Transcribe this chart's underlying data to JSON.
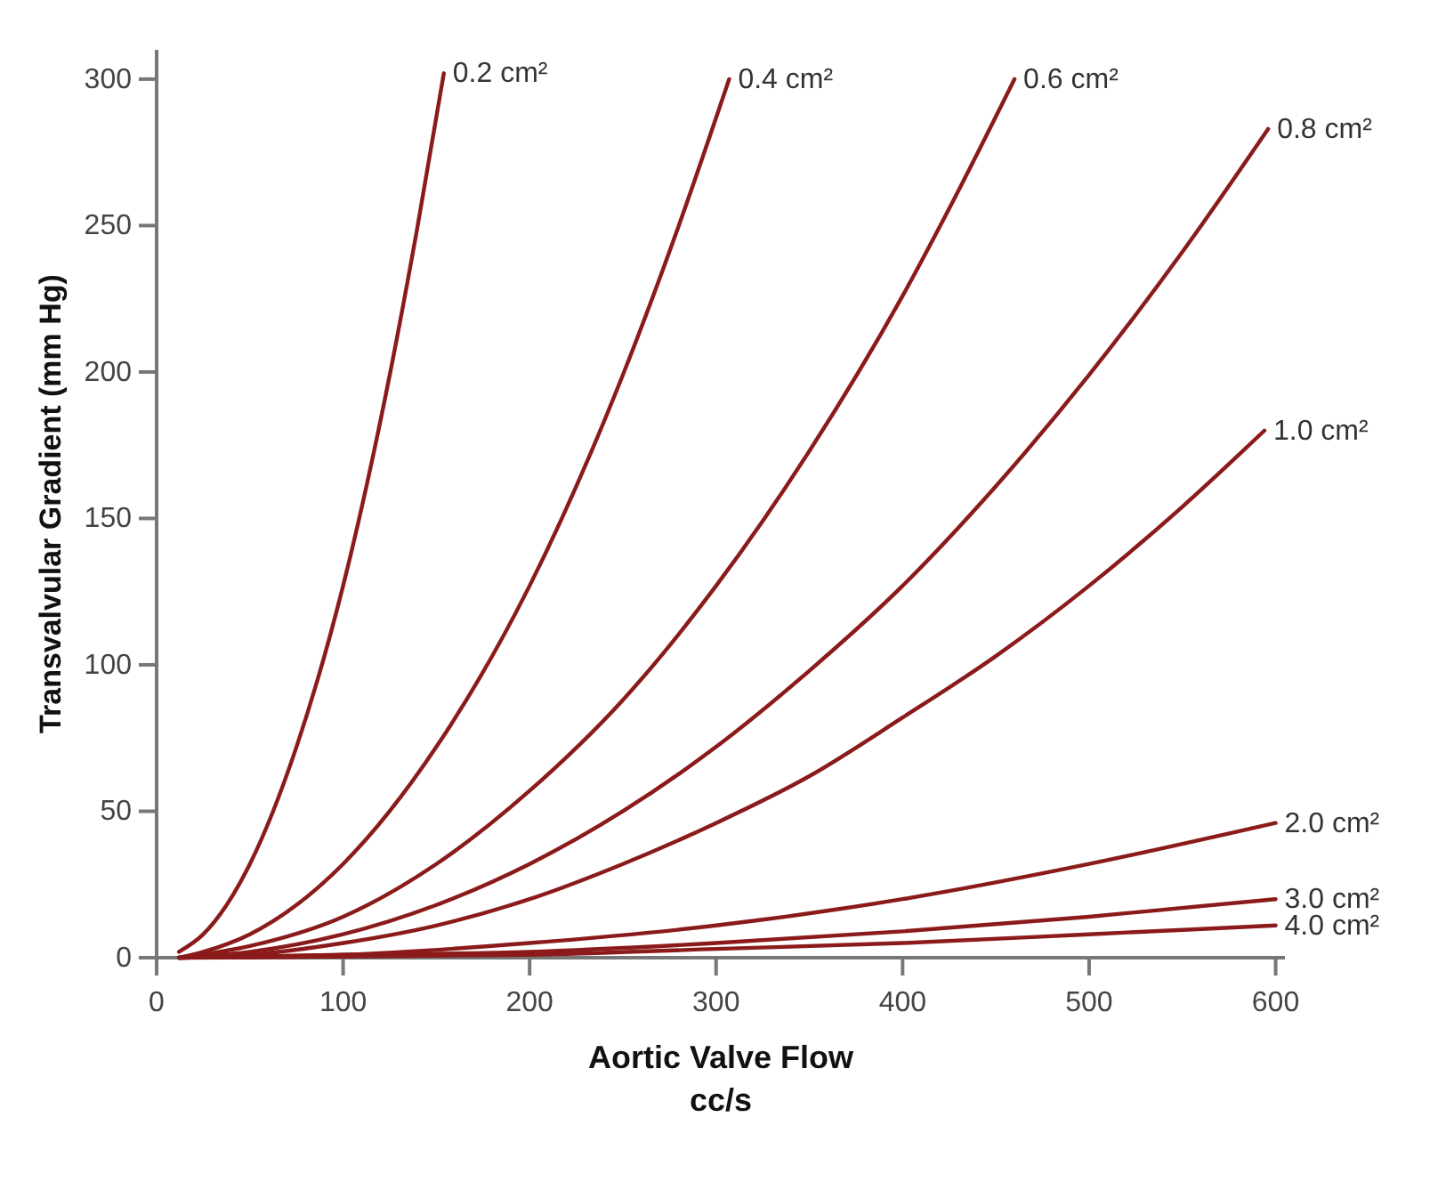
{
  "chart_data": {
    "type": "line",
    "xlabel": "Aortic Valve Flow\ncc/s",
    "ylabel": "Transvalvular Gradient (mm Hg)",
    "xlim": [
      0,
      605
    ],
    "ylim": [
      0,
      310
    ],
    "xticks": [
      0,
      100,
      200,
      300,
      400,
      500,
      600
    ],
    "yticks": [
      0,
      50,
      100,
      150,
      200,
      250,
      300
    ],
    "grid": false,
    "legend": false,
    "series": [
      {
        "name": "0.2 cm²",
        "color": "#8b1a1a",
        "x": [
          12,
          25,
          50,
          75,
          100,
          125,
          140,
          154
        ],
        "values": [
          2,
          8,
          32,
          72,
          127,
          199,
          250,
          302
        ]
      },
      {
        "name": "0.4 cm²",
        "color": "#8b1a1a",
        "x": [
          12,
          25,
          50,
          100,
          150,
          200,
          250,
          280,
          307
        ],
        "values": [
          0,
          2,
          8,
          32,
          72,
          127,
          199,
          250,
          300
        ]
      },
      {
        "name": "0.6 cm²",
        "color": "#8b1a1a",
        "x": [
          12,
          50,
          100,
          150,
          200,
          250,
          300,
          350,
          400,
          430,
          460
        ],
        "values": [
          0,
          4,
          14,
          32,
          57,
          88,
          127,
          173,
          226,
          262,
          300
        ]
      },
      {
        "name": "0.8 cm²",
        "color": "#8b1a1a",
        "x": [
          12,
          50,
          100,
          150,
          200,
          250,
          300,
          350,
          400,
          450,
          500,
          550,
          596
        ],
        "values": [
          0,
          2,
          8,
          18,
          32,
          50,
          72,
          98,
          127,
          161,
          199,
          241,
          283
        ]
      },
      {
        "name": "1.0 cm²",
        "color": "#8b1a1a",
        "x": [
          12,
          50,
          100,
          150,
          200,
          250,
          300,
          350,
          400,
          450,
          500,
          550,
          594
        ],
        "values": [
          0,
          1,
          5,
          11,
          20,
          32,
          46,
          62,
          82,
          103,
          127,
          154,
          180
        ]
      },
      {
        "name": "2.0 cm²",
        "color": "#8b1a1a",
        "x": [
          12,
          100,
          200,
          300,
          400,
          500,
          600
        ],
        "values": [
          0,
          1,
          5,
          11,
          20,
          32,
          46
        ]
      },
      {
        "name": "3.0 cm²",
        "color": "#8b1a1a",
        "x": [
          12,
          100,
          200,
          300,
          400,
          500,
          600
        ],
        "values": [
          0,
          1,
          2,
          5,
          9,
          14,
          20
        ]
      },
      {
        "name": "4.0 cm²",
        "color": "#8b1a1a",
        "x": [
          12,
          200,
          300,
          400,
          500,
          600
        ],
        "values": [
          0,
          1,
          3,
          5,
          8,
          11
        ]
      }
    ]
  }
}
